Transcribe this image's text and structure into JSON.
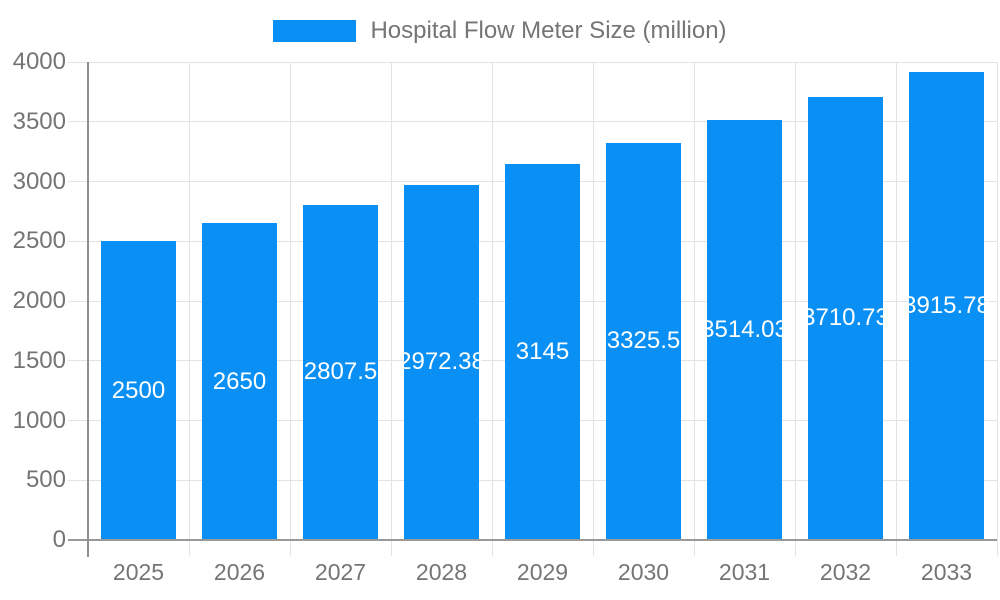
{
  "chart_data": {
    "type": "bar",
    "title": "Hospital Flow Meter Size (million)",
    "categories": [
      "2025",
      "2026",
      "2027",
      "2028",
      "2029",
      "2030",
      "2031",
      "2032",
      "2033"
    ],
    "series": [
      {
        "name": "Hospital Flow Meter Size (million)",
        "values": [
          2500,
          2650,
          2807.5,
          2972.38,
          3145,
          3325.5,
          3514.03,
          3710.73,
          3915.78
        ]
      }
    ],
    "value_labels": [
      "2500",
      "2650",
      "2807.5",
      "2972.38",
      "3145",
      "3325.5",
      "3514.03",
      "3710.73",
      "3915.78"
    ],
    "xlabel": "",
    "ylabel": "",
    "ylim": [
      0,
      4000
    ],
    "yticks": [
      0,
      500,
      1000,
      1500,
      2000,
      2500,
      3000,
      3500,
      4000
    ],
    "grid": true,
    "legend_position": "top",
    "colors": {
      "bar": "#0a90f5",
      "text": "#757575",
      "grid": "#e3e3e3",
      "baseline": "#999999",
      "axis": "#8f8f8f",
      "value_label": "#ffffff",
      "background": "#ffffff"
    }
  }
}
